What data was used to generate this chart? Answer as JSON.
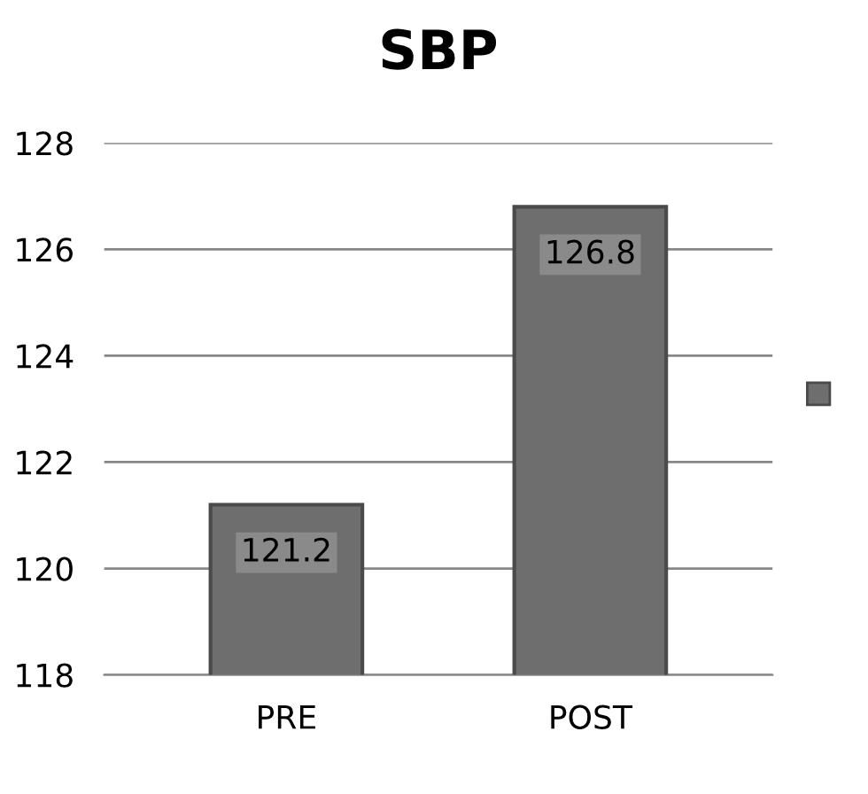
{
  "chart_data": {
    "type": "bar",
    "title": "SBP",
    "categories": [
      "PRE",
      "POST"
    ],
    "series": [
      {
        "color": "#6e6e6e",
        "values": [
          121.2,
          126.8
        ]
      }
    ],
    "ylim": [
      118,
      128
    ],
    "yticks": [
      118,
      120,
      122,
      124,
      126,
      128
    ],
    "grid": "y",
    "data_labels": true
  }
}
